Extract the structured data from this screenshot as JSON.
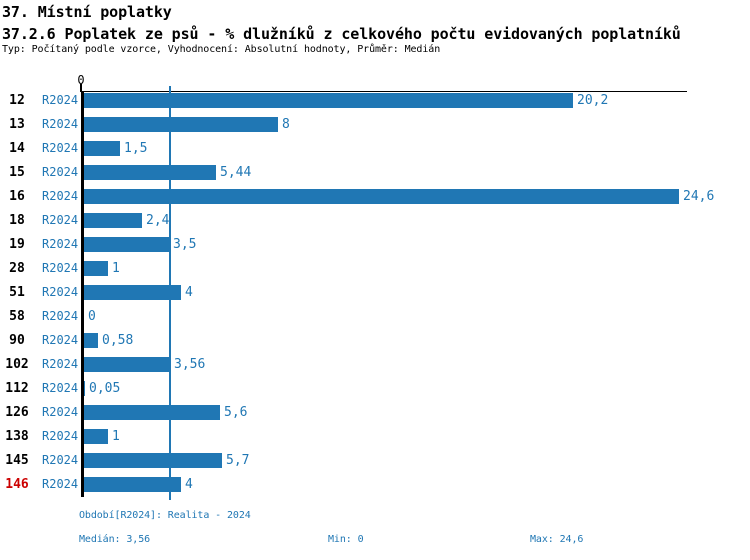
{
  "header": {
    "title1": "37. Místní poplatky",
    "title2": "37.2.6 Poplatek ze psů - % dlužníků z celkového počtu evidovaných poplatníků",
    "meta": "Typ: Počítaný podle vzorce, Vyhodnocení: Absolutní hodnoty, Průměr: Medián"
  },
  "chart_data": {
    "type": "bar",
    "orientation": "horizontal",
    "title": "37.2.6 Poplatek ze psů - % dlužníků z celkového počtu evidovaných poplatníků",
    "axis_zero_label": "0",
    "series_label": "R2024",
    "categories": [
      "12",
      "13",
      "14",
      "15",
      "16",
      "18",
      "19",
      "28",
      "51",
      "58",
      "90",
      "102",
      "112",
      "126",
      "138",
      "145",
      "146"
    ],
    "values": [
      20.2,
      8,
      1.5,
      5.44,
      24.6,
      2.4,
      3.5,
      1,
      4,
      0,
      0.58,
      3.56,
      0.05,
      5.6,
      1,
      5.7,
      4
    ],
    "value_labels": [
      "20,2",
      "8",
      "1,5",
      "5,44",
      "24,6",
      "2,4",
      "3,5",
      "1",
      "4",
      "0",
      "0,58",
      "3,56",
      "0,05",
      "5,6",
      "1",
      "5,7",
      "4"
    ],
    "highlighted_category": "146",
    "median_line_value": 3.56,
    "xlim": [
      0,
      25
    ],
    "grid": "median-only",
    "legend_position": "none",
    "bar_color": "#2077b4",
    "highlight_color": "#cc0000"
  },
  "footer": {
    "period": "Období[R2024]: Realita - 2024",
    "median": "Medián: 3,56",
    "min": "Min: 0",
    "max": "Max: 24,6"
  }
}
